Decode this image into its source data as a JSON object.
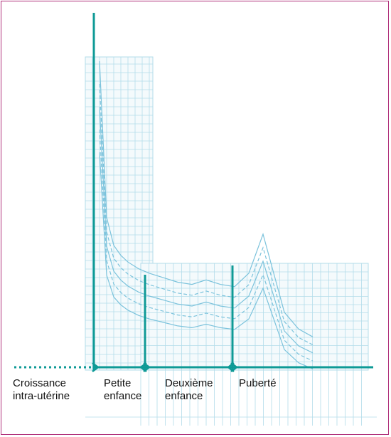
{
  "chart_data": {
    "type": "line",
    "title": "",
    "xlabel": "",
    "ylabel": "",
    "phases": [
      {
        "name": "Croissance\nintra-utérine"
      },
      {
        "name": "Petite\nenfance"
      },
      {
        "name": "Deuxième\nenfance"
      },
      {
        "name": "Puberté"
      }
    ],
    "series": [
      {
        "values_pattern": "velocity-curve",
        "x": [
          0,
          1,
          2,
          3,
          4,
          5,
          6,
          7,
          8,
          9,
          10,
          11,
          12,
          13,
          14,
          15,
          16,
          17,
          18
        ],
        "y": [
          25,
          11,
          8.5,
          7.6,
          7.0,
          6.4,
          6.0,
          5.6,
          5.2,
          5.0,
          5.4,
          5.0,
          4.8,
          6.0,
          9.5,
          6.0,
          2.5,
          1.0,
          0.3
        ]
      }
    ],
    "colors": {
      "accent": "#0e9a96",
      "grid": "#b3dcea",
      "curve": "#7cc3dc",
      "frame": "#b0307a"
    }
  }
}
